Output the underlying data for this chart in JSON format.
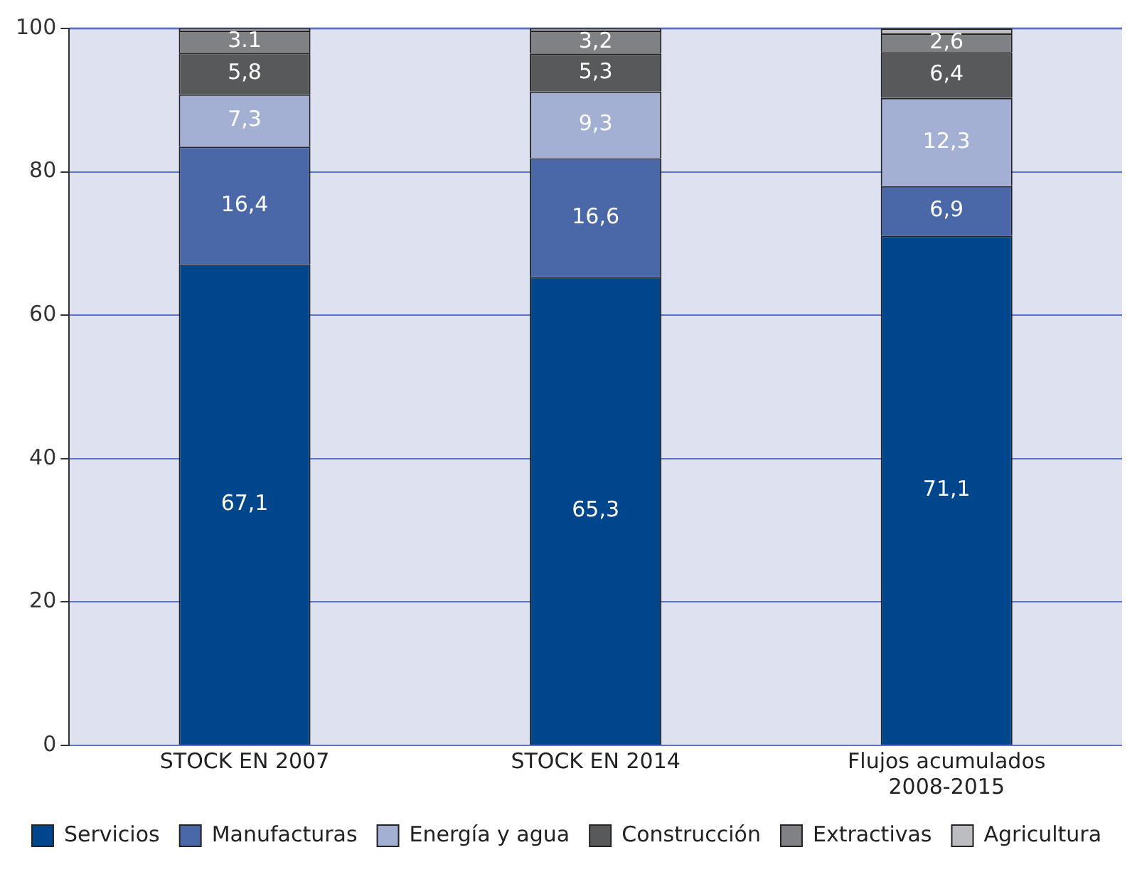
{
  "chart_data": {
    "type": "bar",
    "stacked": true,
    "categories": [
      "STOCK EN 2007",
      "STOCK EN 2014",
      "Flujos acumulados\n2008-2015"
    ],
    "series": [
      {
        "name": "Servicios",
        "color": "#00468c",
        "values": [
          67.1,
          65.3,
          71.1
        ],
        "value_labels": [
          "67,1",
          "65,3",
          "71,1"
        ]
      },
      {
        "name": "Manufacturas",
        "color": "#4a67a8",
        "values": [
          16.4,
          16.6,
          6.9
        ],
        "value_labels": [
          "16,4",
          "16,6",
          "6,9"
        ]
      },
      {
        "name": "Energía y agua",
        "color": "#a3b0d4",
        "values": [
          7.3,
          9.3,
          12.3
        ],
        "value_labels": [
          "7,3",
          "9,3",
          "12,3"
        ]
      },
      {
        "name": "Construcción",
        "color": "#58595b",
        "values": [
          5.8,
          5.3,
          6.4
        ],
        "value_labels": [
          "5,8",
          "5,3",
          "6,4"
        ]
      },
      {
        "name": "Extractivas",
        "color": "#808184",
        "values": [
          3.1,
          3.2,
          2.6
        ],
        "value_labels": [
          "3.1",
          "3,2",
          "2,6"
        ]
      },
      {
        "name": "Agricultura",
        "color": "#bcbdc0",
        "values": [
          0.3,
          0.3,
          0.7
        ],
        "value_labels": [
          null,
          null,
          null
        ]
      }
    ],
    "ylim": [
      0,
      100
    ],
    "yticks": [
      0,
      20,
      40,
      60,
      80,
      100
    ],
    "grid": "y",
    "legend": "bottom"
  }
}
